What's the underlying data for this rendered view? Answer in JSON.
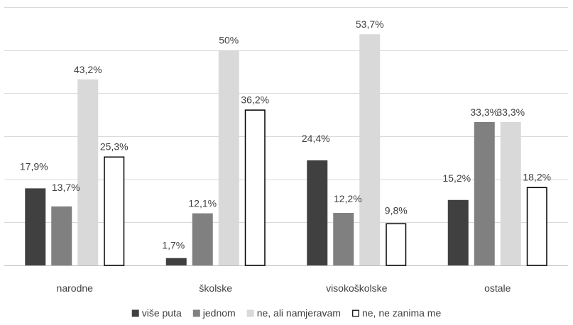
{
  "chart_data": {
    "type": "bar",
    "title": "",
    "xlabel": "",
    "ylabel": "",
    "ylim": [
      0,
      60
    ],
    "yticks": [
      0,
      10,
      20,
      30,
      40,
      50,
      60
    ],
    "y_tick_labels_shown": false,
    "grid": true,
    "legend_position": "bottom",
    "categories": [
      "narodne",
      "školske",
      "visokoškolske",
      "ostale"
    ],
    "series": [
      {
        "name": "više puta",
        "color": "#404040",
        "outline": "#404040",
        "values": [
          17.9,
          1.7,
          24.4,
          15.2
        ],
        "labels": [
          "17,9%",
          "1,7%",
          "24,4%",
          "15,2%"
        ]
      },
      {
        "name": "jednom",
        "color": "#808080",
        "outline": "#808080",
        "values": [
          13.7,
          12.1,
          12.2,
          33.3
        ],
        "labels": [
          "13,7%",
          "12,1%",
          "12,2%",
          "33,3%"
        ]
      },
      {
        "name": "ne, ali namjeravam",
        "color": "#d9d9d9",
        "outline": "#d9d9d9",
        "values": [
          43.2,
          50,
          53.7,
          33.3
        ],
        "labels": [
          "43,2%",
          "50%",
          "53,7%",
          "33,3%"
        ]
      },
      {
        "name": "ne, ne zanima me",
        "color": "#ffffff",
        "outline": "#000000",
        "values": [
          25.3,
          36.2,
          9.8,
          18.2
        ],
        "labels": [
          "25,3%",
          "36,2%",
          "9,8%",
          "18,2%"
        ]
      }
    ]
  }
}
